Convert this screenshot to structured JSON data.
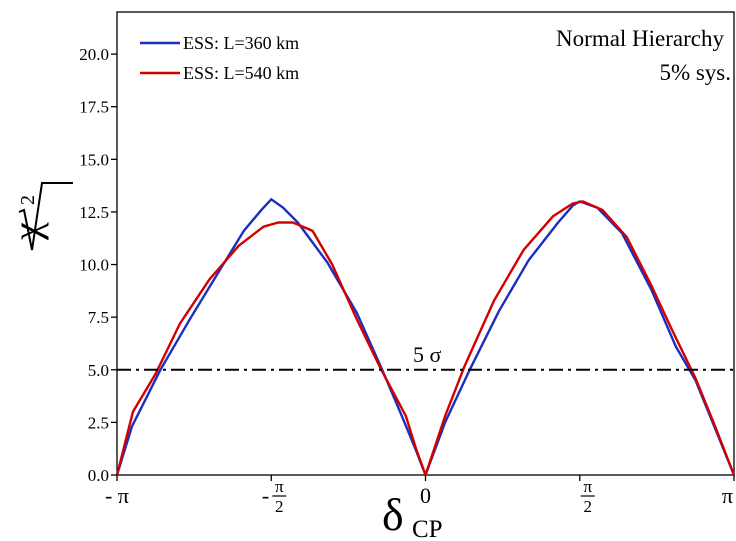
{
  "chart_data": {
    "type": "line",
    "title": "",
    "annotations": [
      "Normal Hierarchy",
      "5% sys.",
      "5 σ"
    ],
    "xlabel": "δ",
    "xlabel_sub": "CP",
    "ylabel": "χ",
    "ylabel_sup": "2",
    "xlim": [
      -3.14159,
      3.14159
    ],
    "ylim": [
      0,
      22
    ],
    "yticks": [
      0,
      2.5,
      5,
      7.5,
      10,
      12.5,
      15,
      17.5,
      20
    ],
    "ytick_labels": [
      "0.0",
      "2.5",
      "5.0",
      "7.5",
      "10.0",
      "12.5",
      "15.0",
      "17.5",
      "20.0"
    ],
    "xticks": [
      {
        "value": -3.14159,
        "label": "- π",
        "kind": "plain"
      },
      {
        "value": -1.5708,
        "label": "- ",
        "num": "π",
        "den": "2",
        "kind": "frac"
      },
      {
        "value": 0,
        "label": "0",
        "kind": "plain"
      },
      {
        "value": 1.5708,
        "label": "",
        "num": "π",
        "den": "2",
        "kind": "frac"
      },
      {
        "value": 3.14159,
        "label": "π",
        "kind": "plain"
      }
    ],
    "grid": false,
    "legend_position": "top-left",
    "threshold": {
      "value": 5,
      "label": "5 σ",
      "style": "dash-dot"
    },
    "colors": {
      "series1": "#1b2fbf",
      "series2": "#d40000",
      "threshold": "#000000"
    },
    "series": [
      {
        "name": "ESS: L=360 km",
        "color": "#1b2fbf",
        "points": [
          [
            -3.14159,
            0
          ],
          [
            -2.99,
            2.3
          ],
          [
            -2.7,
            5.0
          ],
          [
            -2.4,
            7.4
          ],
          [
            -2.1,
            9.7
          ],
          [
            -1.85,
            11.6
          ],
          [
            -1.67,
            12.6
          ],
          [
            -1.57,
            13.1
          ],
          [
            -1.45,
            12.7
          ],
          [
            -1.3,
            12.0
          ],
          [
            -1.0,
            10.1
          ],
          [
            -0.7,
            7.7
          ],
          [
            -0.45,
            5.1
          ],
          [
            -0.25,
            2.9
          ],
          [
            -0.1,
            1.2
          ],
          [
            0,
            0
          ],
          [
            0.2,
            2.5
          ],
          [
            0.45,
            5.0
          ],
          [
            0.75,
            7.8
          ],
          [
            1.05,
            10.2
          ],
          [
            1.35,
            12.0
          ],
          [
            1.5,
            12.8
          ],
          [
            1.57,
            13.0
          ],
          [
            1.75,
            12.7
          ],
          [
            2.0,
            11.5
          ],
          [
            2.3,
            8.8
          ],
          [
            2.55,
            6.1
          ],
          [
            2.75,
            4.5
          ],
          [
            2.95,
            2.2
          ],
          [
            3.14159,
            0
          ]
        ]
      },
      {
        "name": "ESS: L=540 km",
        "color": "#d40000",
        "points": [
          [
            -3.14159,
            0
          ],
          [
            -2.98,
            3.0
          ],
          [
            -2.75,
            4.8
          ],
          [
            -2.5,
            7.2
          ],
          [
            -2.2,
            9.3
          ],
          [
            -1.9,
            10.9
          ],
          [
            -1.65,
            11.8
          ],
          [
            -1.5,
            12.0
          ],
          [
            -1.35,
            12.0
          ],
          [
            -1.15,
            11.6
          ],
          [
            -0.95,
            10.0
          ],
          [
            -0.7,
            7.4
          ],
          [
            -0.45,
            5.0
          ],
          [
            -0.2,
            2.8
          ],
          [
            -0.1,
            1.3
          ],
          [
            0,
            0
          ],
          [
            0.2,
            2.8
          ],
          [
            0.4,
            5.2
          ],
          [
            0.7,
            8.3
          ],
          [
            1.0,
            10.7
          ],
          [
            1.3,
            12.3
          ],
          [
            1.5,
            12.9
          ],
          [
            1.6,
            13.0
          ],
          [
            1.8,
            12.6
          ],
          [
            2.05,
            11.3
          ],
          [
            2.3,
            9.0
          ],
          [
            2.5,
            7.0
          ],
          [
            2.75,
            4.6
          ],
          [
            2.95,
            2.3
          ],
          [
            3.14159,
            0
          ]
        ]
      }
    ]
  }
}
